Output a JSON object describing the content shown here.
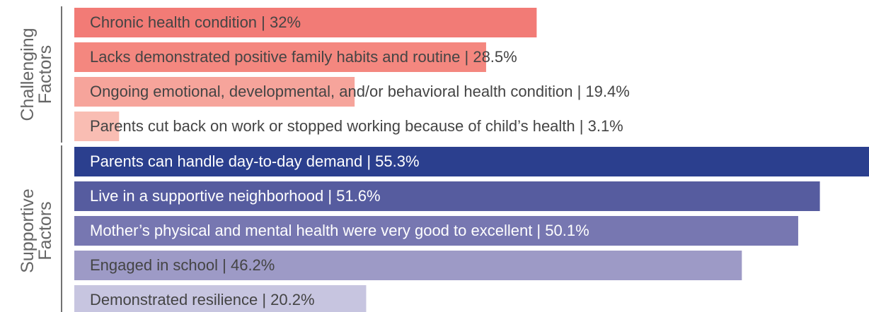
{
  "chart_data": {
    "type": "bar",
    "orientation": "horizontal",
    "xlim": [
      0,
      55
    ],
    "groups": [
      {
        "label": [
          "Challenging",
          "Factors"
        ],
        "categories": [
          "Chronic health condition | 32%",
          "Lacks demonstrated positive family habits and routine | 28.5%",
          "Ongoing emotional, developmental, and/or behavioral health condition | 19.4%",
          "Parents cut back on work or stopped working because of child’s health | 3.1%"
        ],
        "values": [
          32,
          28.5,
          19.4,
          3.1
        ],
        "colors": [
          "#f27b76",
          "#f4877f",
          "#f6a49b",
          "#f9bdb3"
        ]
      },
      {
        "label": [
          "Supportive",
          "Factors"
        ],
        "categories": [
          "Parents can handle day-to-day demand | 55.3%",
          "Live in a supportive neighborhood | 51.6%",
          "Mother’s physical and mental health were very good to excellent | 50.1%",
          "Engaged in school | 46.2%",
          "Demonstrated resilience | 20.2%"
        ],
        "values": [
          55.3,
          51.6,
          50.1,
          46.2,
          20.2
        ],
        "colors": [
          "#2b3f8e",
          "#565c9f",
          "#7777b1",
          "#9d9ac6",
          "#c7c5e0"
        ]
      }
    ]
  }
}
